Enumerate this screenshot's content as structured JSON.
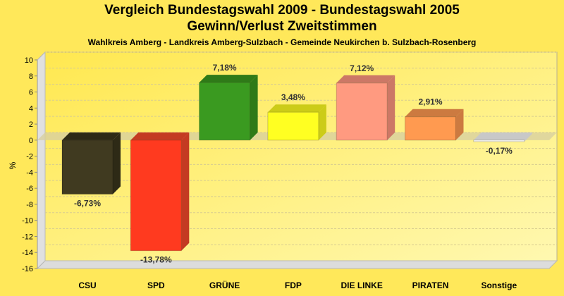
{
  "chart_data": {
    "type": "bar",
    "title": "Vergleich Bundestagswahl 2009 - Bundestagswahl 2005",
    "subtitle": "Gewinn/Verlust Zweitstimmen",
    "subsubtitle": "Wahlkreis Amberg - Landkreis Amberg-Sulzbach - Gemeinde Neukirchen b. Sulzbach-Rosenberg",
    "xlabel": "",
    "ylabel": "%",
    "ylim": [
      -16,
      10
    ],
    "yticks": [
      10,
      8,
      6,
      4,
      2,
      0,
      -2,
      -4,
      -6,
      -8,
      -10,
      -12,
      -14,
      -16
    ],
    "grid": true,
    "categories": [
      "CSU",
      "SPD",
      "GRÜNE",
      "FDP",
      "DIE LINKE",
      "PIRATEN",
      "Sonstige"
    ],
    "values": [
      -6.73,
      -13.78,
      7.18,
      3.48,
      7.12,
      2.91,
      -0.17
    ],
    "labels": [
      "-6,73%",
      "-13,78%",
      "7,18%",
      "3,48%",
      "7,12%",
      "2,91%",
      "-0,17%"
    ],
    "colors": [
      "#403a20",
      "#ff3a1f",
      "#3a9a20",
      "#ffff22",
      "#ff9a80",
      "#ff9a50",
      "#ffffff"
    ],
    "side_colors": [
      "#2e2a16",
      "#c43a22",
      "#2f7a18",
      "#cccc18",
      "#cc7866",
      "#cc7a40",
      "#c8c8c8"
    ]
  }
}
